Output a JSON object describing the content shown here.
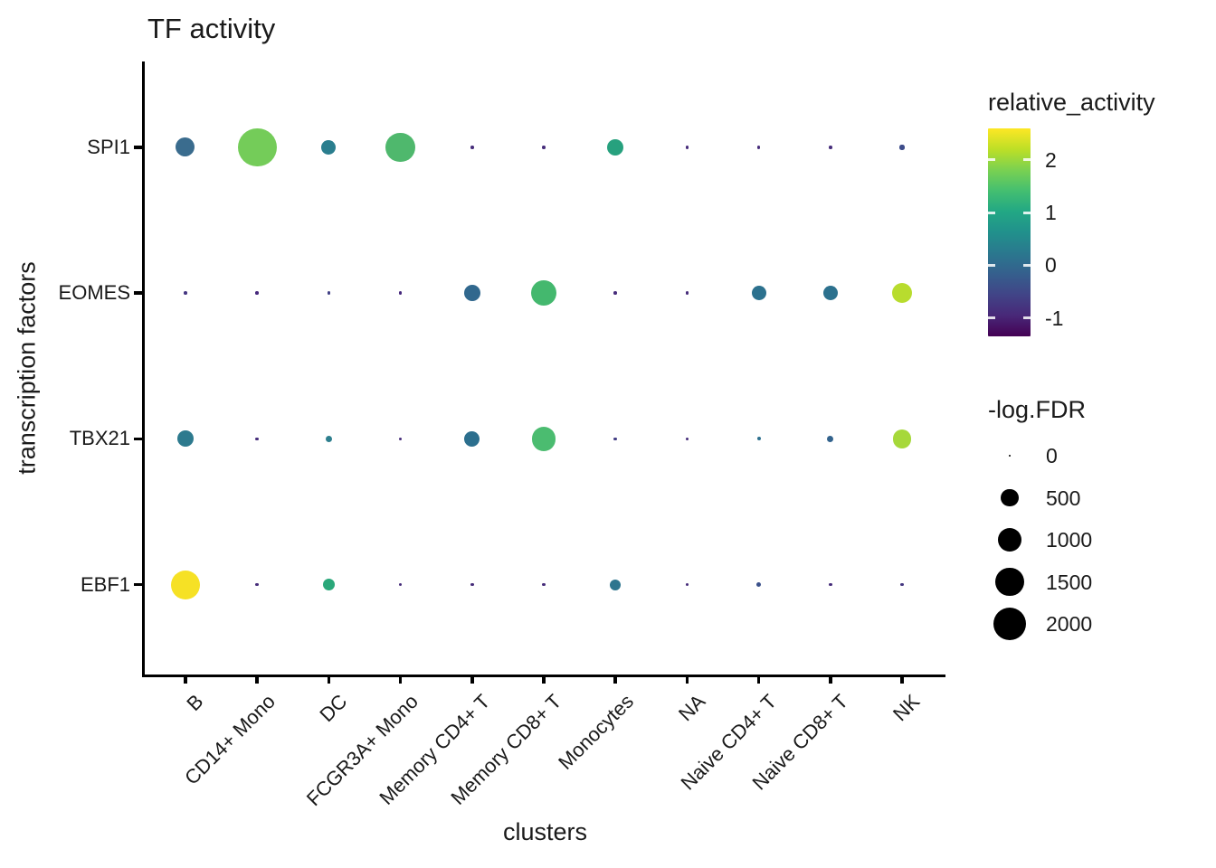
{
  "chart_data": {
    "type": "scatter",
    "title": "TF activity",
    "xlabel": "clusters",
    "ylabel": "transcription factors",
    "x_categories": [
      "B",
      "CD14+ Mono",
      "DC",
      "FCGR3A+ Mono",
      "Memory CD4+ T",
      "Memory CD8+ T",
      "Monocytes",
      "NA",
      "Naive CD4+ T",
      "Naive CD8+ T",
      "NK"
    ],
    "y_categories": [
      "SPI1",
      "EOMES",
      "TBX21",
      "EBF1"
    ],
    "color_legend": {
      "title": "relative_activity",
      "ticks": [
        2,
        1,
        0,
        -1
      ],
      "domain": [
        -1.35,
        2.6
      ],
      "colormap": "viridis",
      "gradient_stops": [
        "#fde725",
        "#bddf26",
        "#7ad151",
        "#44bf70",
        "#22a884",
        "#21918c",
        "#2a788e",
        "#355f8d",
        "#414487",
        "#482878",
        "#440154"
      ]
    },
    "size_legend": {
      "title": "-log.FDR",
      "entries": [
        0,
        500,
        1000,
        1500,
        2000
      ],
      "color": "#000000"
    },
    "points": [
      {
        "tf": "SPI1",
        "cluster": "B",
        "relative_activity": 0.1,
        "neg_log_FDR": 610,
        "color": "#3a6c8e"
      },
      {
        "tf": "SPI1",
        "cluster": "CD14+ Mono",
        "relative_activity": 1.75,
        "neg_log_FDR": 2900,
        "color": "#74cc59"
      },
      {
        "tf": "SPI1",
        "cluster": "DC",
        "relative_activity": 0.35,
        "neg_log_FDR": 320,
        "color": "#2a7e8e"
      },
      {
        "tf": "SPI1",
        "cluster": "FCGR3A+ Mono",
        "relative_activity": 1.4,
        "neg_log_FDR": 1650,
        "color": "#4fb86d"
      },
      {
        "tf": "SPI1",
        "cluster": "Memory CD4+ T",
        "relative_activity": -0.95,
        "neg_log_FDR": 2,
        "color": "#472d7b"
      },
      {
        "tf": "SPI1",
        "cluster": "Memory CD8+ T",
        "relative_activity": -0.95,
        "neg_log_FDR": 2,
        "color": "#472d7b"
      },
      {
        "tf": "SPI1",
        "cluster": "Monocytes",
        "relative_activity": 0.95,
        "neg_log_FDR": 430,
        "color": "#27a17e"
      },
      {
        "tf": "SPI1",
        "cluster": "NA",
        "relative_activity": -0.95,
        "neg_log_FDR": 2,
        "color": "#472d7b"
      },
      {
        "tf": "SPI1",
        "cluster": "Naive CD4+ T",
        "relative_activity": -0.95,
        "neg_log_FDR": 2,
        "color": "#472d7b"
      },
      {
        "tf": "SPI1",
        "cluster": "Naive CD8+ T",
        "relative_activity": -0.95,
        "neg_log_FDR": 2,
        "color": "#472d7b"
      },
      {
        "tf": "SPI1",
        "cluster": "NK",
        "relative_activity": -0.55,
        "neg_log_FDR": 12,
        "color": "#3d4c8a"
      },
      {
        "tf": "EOMES",
        "cluster": "B",
        "relative_activity": -0.85,
        "neg_log_FDR": 2,
        "color": "#453681"
      },
      {
        "tf": "EOMES",
        "cluster": "CD14+ Mono",
        "relative_activity": -1.05,
        "neg_log_FDR": 2,
        "color": "#46287c"
      },
      {
        "tf": "EOMES",
        "cluster": "DC",
        "relative_activity": -0.7,
        "neg_log_FDR": 2,
        "color": "#424186"
      },
      {
        "tf": "EOMES",
        "cluster": "FCGR3A+ Mono",
        "relative_activity": -1.05,
        "neg_log_FDR": 2,
        "color": "#46287c"
      },
      {
        "tf": "EOMES",
        "cluster": "Memory CD4+ T",
        "relative_activity": 0.1,
        "neg_log_FDR": 430,
        "color": "#31688e"
      },
      {
        "tf": "EOMES",
        "cluster": "Memory CD8+ T",
        "relative_activity": 1.35,
        "neg_log_FDR": 1150,
        "color": "#44b86e"
      },
      {
        "tf": "EOMES",
        "cluster": "Monocytes",
        "relative_activity": -0.95,
        "neg_log_FDR": 2,
        "color": "#472d7b"
      },
      {
        "tf": "EOMES",
        "cluster": "NA",
        "relative_activity": -0.95,
        "neg_log_FDR": 2,
        "color": "#472d7b"
      },
      {
        "tf": "EOMES",
        "cluster": "Naive CD4+ T",
        "relative_activity": 0.25,
        "neg_log_FDR": 320,
        "color": "#2c718e"
      },
      {
        "tf": "EOMES",
        "cluster": "Naive CD8+ T",
        "relative_activity": 0.25,
        "neg_log_FDR": 320,
        "color": "#2c718e"
      },
      {
        "tf": "EOMES",
        "cluster": "NK",
        "relative_activity": 2.2,
        "neg_log_FDR": 680,
        "color": "#b8dc2e"
      },
      {
        "tf": "TBX21",
        "cluster": "B",
        "relative_activity": 0.3,
        "neg_log_FDR": 430,
        "color": "#2d7a8e"
      },
      {
        "tf": "TBX21",
        "cluster": "CD14+ Mono",
        "relative_activity": -0.95,
        "neg_log_FDR": 2,
        "color": "#472d7b"
      },
      {
        "tf": "TBX21",
        "cluster": "DC",
        "relative_activity": 0.35,
        "neg_log_FDR": 35,
        "color": "#2e7f8e"
      },
      {
        "tf": "TBX21",
        "cluster": "FCGR3A+ Mono",
        "relative_activity": -0.95,
        "neg_log_FDR": 2,
        "color": "#472d7b"
      },
      {
        "tf": "TBX21",
        "cluster": "Memory CD4+ T",
        "relative_activity": 0.2,
        "neg_log_FDR": 380,
        "color": "#2c6f8e"
      },
      {
        "tf": "TBX21",
        "cluster": "Memory CD8+ T",
        "relative_activity": 1.45,
        "neg_log_FDR": 1060,
        "color": "#4bbc70"
      },
      {
        "tf": "TBX21",
        "cluster": "Monocytes",
        "relative_activity": -0.75,
        "neg_log_FDR": 2,
        "color": "#433d84"
      },
      {
        "tf": "TBX21",
        "cluster": "NA",
        "relative_activity": -0.95,
        "neg_log_FDR": 2,
        "color": "#472d7b"
      },
      {
        "tf": "TBX21",
        "cluster": "Naive CD4+ T",
        "relative_activity": 0.2,
        "neg_log_FDR": 5,
        "color": "#2d708e"
      },
      {
        "tf": "TBX21",
        "cluster": "Naive CD8+ T",
        "relative_activity": 0.05,
        "neg_log_FDR": 35,
        "color": "#33638d"
      },
      {
        "tf": "TBX21",
        "cluster": "NK",
        "relative_activity": 2.05,
        "neg_log_FDR": 600,
        "color": "#a6d83a"
      },
      {
        "tf": "EBF1",
        "cluster": "B",
        "relative_activity": 2.5,
        "neg_log_FDR": 1550,
        "color": "#f6e125"
      },
      {
        "tf": "EBF1",
        "cluster": "CD14+ Mono",
        "relative_activity": -0.95,
        "neg_log_FDR": 2,
        "color": "#472d7b"
      },
      {
        "tf": "EBF1",
        "cluster": "DC",
        "relative_activity": 1.0,
        "neg_log_FDR": 200,
        "color": "#2aa87a"
      },
      {
        "tf": "EBF1",
        "cluster": "FCGR3A+ Mono",
        "relative_activity": -0.95,
        "neg_log_FDR": 2,
        "color": "#472d7b"
      },
      {
        "tf": "EBF1",
        "cluster": "Memory CD4+ T",
        "relative_activity": -0.95,
        "neg_log_FDR": 2,
        "color": "#472d7b"
      },
      {
        "tf": "EBF1",
        "cluster": "Memory CD8+ T",
        "relative_activity": -0.95,
        "neg_log_FDR": 2,
        "color": "#472d7b"
      },
      {
        "tf": "EBF1",
        "cluster": "Monocytes",
        "relative_activity": 0.25,
        "neg_log_FDR": 165,
        "color": "#2d758e"
      },
      {
        "tf": "EBF1",
        "cluster": "NA",
        "relative_activity": -0.95,
        "neg_log_FDR": 2,
        "color": "#472d7b"
      },
      {
        "tf": "EBF1",
        "cluster": "Naive CD4+ T",
        "relative_activity": -0.45,
        "neg_log_FDR": 12,
        "color": "#3b518b"
      },
      {
        "tf": "EBF1",
        "cluster": "Naive CD8+ T",
        "relative_activity": -0.95,
        "neg_log_FDR": 2,
        "color": "#472d7b"
      },
      {
        "tf": "EBF1",
        "cluster": "NK",
        "relative_activity": -0.85,
        "neg_log_FDR": 2,
        "color": "#453781"
      }
    ]
  }
}
